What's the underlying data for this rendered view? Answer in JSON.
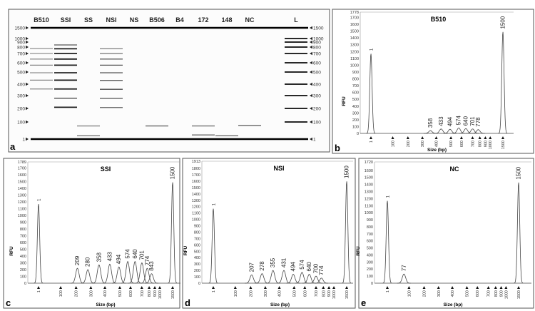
{
  "colors": {
    "trace": "#444444",
    "band_dark": "#111111",
    "band_light": "#9a9a9a",
    "frame": "#555555"
  },
  "gel": {
    "panel_letter": "a",
    "ladder_sizes": [
      1,
      100,
      200,
      300,
      400,
      500,
      600,
      700,
      800,
      900,
      1000,
      1500
    ],
    "ladder_labels": [
      "1",
      "100",
      "200",
      "300",
      "400",
      "500",
      "600",
      "700",
      "800",
      "900",
      "1000",
      "1500"
    ],
    "lanes": [
      {
        "label": "B510",
        "bands": [
          [
            358,
            0.35
          ],
          [
            433,
            0.35
          ],
          [
            494,
            0.3
          ],
          [
            574,
            0.35
          ],
          [
            640,
            0.3
          ],
          [
            701,
            0.3
          ],
          [
            778,
            0.3
          ]
        ]
      },
      {
        "label": "SSI",
        "bands": [
          [
            209,
            0.9
          ],
          [
            280,
            0.75
          ],
          [
            358,
            0.9
          ],
          [
            433,
            0.95
          ],
          [
            494,
            0.85
          ],
          [
            574,
            0.9
          ],
          [
            640,
            0.9
          ],
          [
            701,
            0.9
          ],
          [
            774,
            0.9
          ],
          [
            843,
            0.6
          ]
        ]
      },
      {
        "label": "SS",
        "bands": [
          [
            77,
            0.35
          ],
          [
            20,
            0.5
          ]
        ]
      },
      {
        "label": "NSI",
        "bands": [
          [
            207,
            0.55
          ],
          [
            278,
            0.55
          ],
          [
            355,
            0.65
          ],
          [
            431,
            0.65
          ],
          [
            494,
            0.6
          ],
          [
            574,
            0.6
          ],
          [
            640,
            0.55
          ],
          [
            700,
            0.45
          ],
          [
            774,
            0.4
          ]
        ]
      },
      {
        "label": "NS",
        "bands": []
      },
      {
        "label": "B506",
        "bands": [
          [
            77,
            0.5
          ]
        ]
      },
      {
        "label": "B4",
        "bands": []
      },
      {
        "label": "172",
        "bands": [
          [
            77,
            0.45
          ],
          [
            25,
            0.5
          ]
        ]
      },
      {
        "label": "148",
        "bands": [
          [
            20,
            0.55
          ]
        ]
      },
      {
        "label": "NC",
        "bands": [
          [
            80,
            0.6
          ]
        ]
      },
      {
        "label": "L",
        "bands": [
          [
            100,
            1
          ],
          [
            200,
            1
          ],
          [
            300,
            1
          ],
          [
            400,
            1
          ],
          [
            500,
            1
          ],
          [
            600,
            1
          ],
          [
            700,
            1
          ],
          [
            800,
            1
          ],
          [
            900,
            1
          ],
          [
            1000,
            1
          ]
        ]
      }
    ]
  },
  "chart_data": [
    {
      "type": "line",
      "panel_letter": "b",
      "title": "B510",
      "xlabel": "Size (bp)",
      "ylabel": "RFU",
      "ylim": [
        0,
        1778
      ],
      "y_ticks": [
        "0",
        "100",
        "200",
        "300",
        "400",
        "500",
        "600",
        "700",
        "800",
        "900",
        "1000",
        "1100",
        "1200",
        "1300",
        "1400",
        "1500",
        "1600",
        "1700",
        "1778"
      ],
      "x_ticks": [
        "1",
        "100",
        "200",
        "300",
        "400",
        "500",
        "600",
        "700",
        "800",
        "900",
        "1000",
        "1500"
      ],
      "peaks": [
        {
          "size": 1,
          "rfu": 1170,
          "label": "1"
        },
        {
          "size": 358,
          "rfu": 40,
          "label": "358"
        },
        {
          "size": 433,
          "rfu": 65,
          "label": "433"
        },
        {
          "size": 494,
          "rfu": 60,
          "label": "494"
        },
        {
          "size": 574,
          "rfu": 80,
          "label": "574"
        },
        {
          "size": 640,
          "rfu": 70,
          "label": "640"
        },
        {
          "size": 701,
          "rfu": 65,
          "label": "701"
        },
        {
          "size": 778,
          "rfu": 55,
          "label": "778"
        },
        {
          "size": 1500,
          "rfu": 1490,
          "label": "1500"
        }
      ]
    },
    {
      "type": "line",
      "panel_letter": "c",
      "title": "SSI",
      "xlabel": "Size (bp)",
      "ylabel": "RFU",
      "ylim": [
        0,
        1789
      ],
      "y_ticks": [
        "0",
        "100",
        "200",
        "300",
        "400",
        "500",
        "600",
        "700",
        "800",
        "900",
        "1000",
        "1100",
        "1200",
        "1300",
        "1400",
        "1500",
        "1600",
        "1700",
        "1789"
      ],
      "x_ticks": [
        "1",
        "100",
        "200",
        "300",
        "400",
        "500",
        "600",
        "700",
        "800",
        "900",
        "1000",
        "1500"
      ],
      "peaks": [
        {
          "size": 1,
          "rfu": 1170,
          "label": "1"
        },
        {
          "size": 209,
          "rfu": 220,
          "label": "209"
        },
        {
          "size": 280,
          "rfu": 200,
          "label": "280"
        },
        {
          "size": 358,
          "rfu": 270,
          "label": "358"
        },
        {
          "size": 433,
          "rfu": 280,
          "label": "433"
        },
        {
          "size": 494,
          "rfu": 240,
          "label": "494"
        },
        {
          "size": 574,
          "rfu": 320,
          "label": "574"
        },
        {
          "size": 640,
          "rfu": 320,
          "label": "640"
        },
        {
          "size": 701,
          "rfu": 300,
          "label": "701"
        },
        {
          "size": 774,
          "rfu": 220,
          "label": "774"
        },
        {
          "size": 843,
          "rfu": 140,
          "label": "843"
        },
        {
          "size": 1500,
          "rfu": 1490,
          "label": "1500"
        }
      ]
    },
    {
      "type": "line",
      "panel_letter": "d",
      "title": "NSI",
      "xlabel": "Size (bp)",
      "ylabel": "RFU",
      "ylim": [
        0,
        1913
      ],
      "y_ticks": [
        "0",
        "100",
        "200",
        "300",
        "400",
        "500",
        "600",
        "700",
        "800",
        "900",
        "1000",
        "1100",
        "1200",
        "1300",
        "1400",
        "1500",
        "1600",
        "1700",
        "1800",
        "1913"
      ],
      "x_ticks": [
        "1",
        "100",
        "200",
        "300",
        "400",
        "500",
        "600",
        "700",
        "800",
        "900",
        "1000",
        "1500"
      ],
      "peaks": [
        {
          "size": 1,
          "rfu": 1170,
          "label": "1"
        },
        {
          "size": 207,
          "rfu": 130,
          "label": "207"
        },
        {
          "size": 278,
          "rfu": 150,
          "label": "278"
        },
        {
          "size": 355,
          "rfu": 200,
          "label": "355"
        },
        {
          "size": 431,
          "rfu": 200,
          "label": "431"
        },
        {
          "size": 494,
          "rfu": 140,
          "label": "494"
        },
        {
          "size": 574,
          "rfu": 170,
          "label": "574"
        },
        {
          "size": 640,
          "rfu": 140,
          "label": "640"
        },
        {
          "size": 700,
          "rfu": 110,
          "label": "700"
        },
        {
          "size": 774,
          "rfu": 80,
          "label": "774"
        },
        {
          "size": 1500,
          "rfu": 1600,
          "label": "1500"
        }
      ]
    },
    {
      "type": "line",
      "panel_letter": "e",
      "title": "NC",
      "xlabel": "Size (bp)",
      "ylabel": "RFU",
      "ylim": [
        0,
        1720
      ],
      "y_ticks": [
        "0",
        "100",
        "200",
        "300",
        "400",
        "500",
        "600",
        "700",
        "800",
        "900",
        "1000",
        "1100",
        "1200",
        "1300",
        "1400",
        "1500",
        "1600",
        "1720"
      ],
      "x_ticks": [
        "1",
        "100",
        "200",
        "300",
        "400",
        "500",
        "600",
        "700",
        "800",
        "900",
        "1000",
        "1500"
      ],
      "peaks": [
        {
          "size": 1,
          "rfu": 1170,
          "label": "1"
        },
        {
          "size": 77,
          "rfu": 130,
          "label": "77"
        },
        {
          "size": 1500,
          "rfu": 1430,
          "label": "1500"
        }
      ]
    }
  ]
}
